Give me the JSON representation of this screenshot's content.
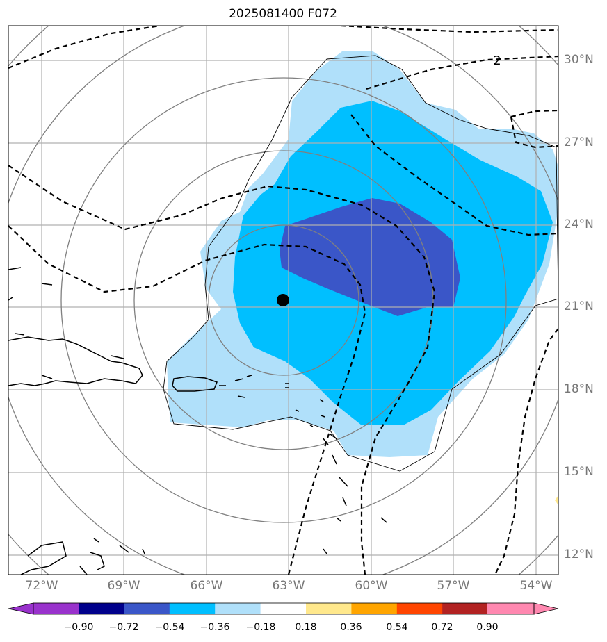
{
  "title": "2025081400 F072",
  "lat_labels": [
    "30°N",
    "27°N",
    "24°N",
    "21°N",
    "18°N",
    "15°N",
    "12°N"
  ],
  "lon_labels": [
    "72°W",
    "69°W",
    "66°W",
    "63°W",
    "60°W",
    "57°W",
    "54°W"
  ],
  "contour_label": "2",
  "colorbar": {
    "ticks": [
      "−0.90",
      "−0.72",
      "−0.54",
      "−0.36",
      "−0.18",
      "0.18",
      "0.36",
      "0.54",
      "0.72",
      "0.90"
    ],
    "colors": [
      "#9932cc",
      "#00008b",
      "#3a56c8",
      "#00bfff",
      "#b0e0fa",
      "#ffffff",
      "#ffe88c",
      "#ffa500",
      "#ff4500",
      "#b22222",
      "#ff88b0"
    ]
  },
  "storm_center": {
    "lon": -63.2,
    "lat": 21.2
  },
  "shading_colors": {
    "level1": "#b0e0fa",
    "level2": "#00bfff",
    "level3": "#3a56c8"
  }
}
